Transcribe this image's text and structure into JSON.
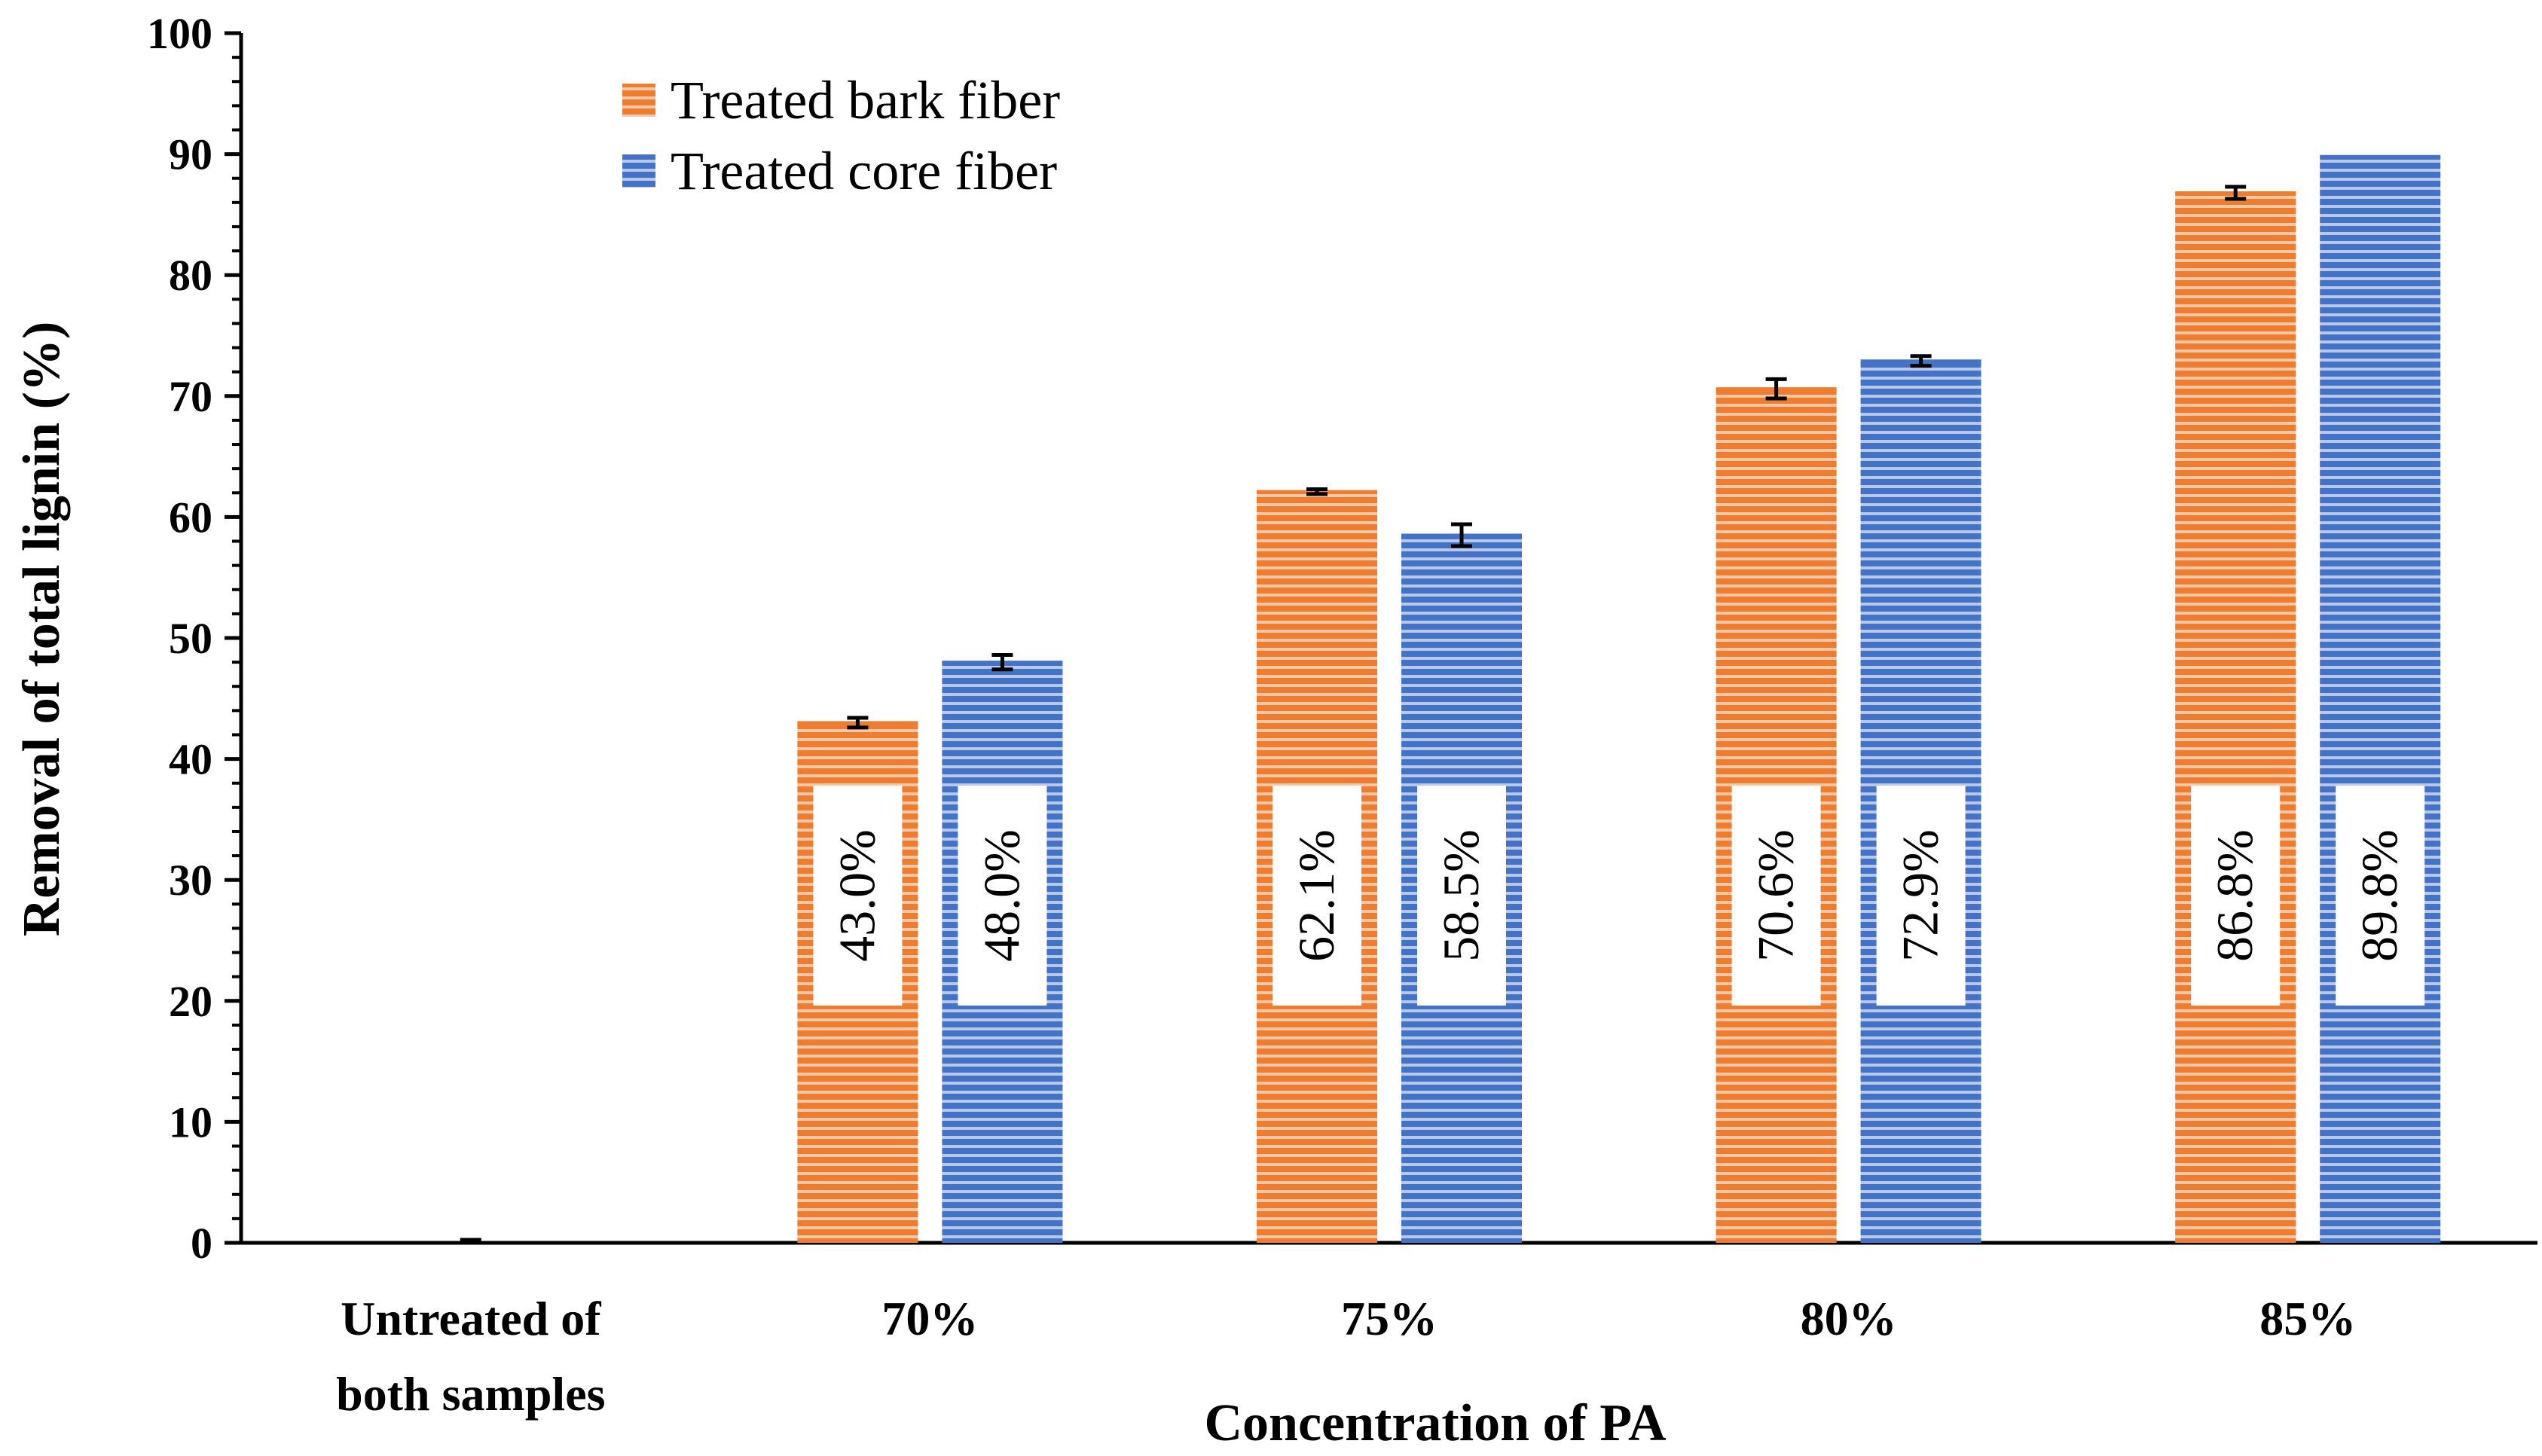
{
  "chart_data": {
    "type": "bar",
    "title": "",
    "xlabel": "Concentration of  PA",
    "ylabel": "Removal of total lignin (%)",
    "ylim": [
      0,
      100
    ],
    "yticks": [
      "0",
      "10",
      "20",
      "30",
      "40",
      "50",
      "60",
      "70",
      "80",
      "90",
      "100"
    ],
    "categories": [
      [
        "Untreated of",
        "both samples"
      ],
      [
        "70%"
      ],
      [
        "75%"
      ],
      [
        "80%"
      ],
      [
        "85%"
      ]
    ],
    "series": [
      {
        "name": "Treated bark fiber",
        "color": "#ED7D31",
        "values": [
          0,
          43.0,
          62.1,
          70.6,
          86.8
        ],
        "errors": [
          0.2,
          0.4,
          0.2,
          0.8,
          0.5
        ],
        "labels": [
          "",
          "43.0%",
          "62.1%",
          "70.6%",
          "86.8%"
        ]
      },
      {
        "name": "Treated core fiber",
        "color": "#4472C4",
        "values": [
          0,
          48.0,
          58.5,
          72.9,
          89.8
        ],
        "errors": [
          0,
          0.6,
          0.9,
          0.4,
          0
        ],
        "labels": [
          "",
          "48.0%",
          "58.5%",
          "72.9%",
          "89.8%"
        ]
      }
    ],
    "legend_position": "top-left",
    "grid": false
  }
}
